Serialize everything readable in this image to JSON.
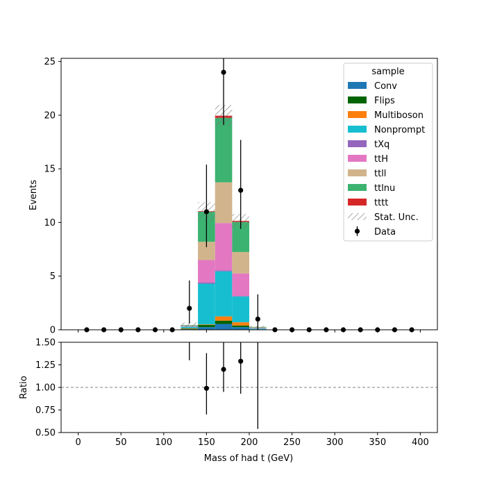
{
  "chart_data": {
    "type": "bar",
    "stacked": true,
    "xlabel": "Mass of had t (GeV)",
    "ylabel": "Events",
    "ratio_ylabel": "Ratio",
    "xlim": [
      -20,
      420
    ],
    "ylim": [
      0,
      25.3
    ],
    "ratio_ylim": [
      0.5,
      1.5
    ],
    "xticks": [
      0,
      50,
      100,
      150,
      200,
      250,
      300,
      350,
      400
    ],
    "yticks": [
      0,
      5,
      10,
      15,
      20,
      25
    ],
    "ratio_yticks": [
      "0.50",
      "0.75",
      "1.00",
      "1.25",
      "1.50"
    ],
    "ratio_yticks_values": [
      0.5,
      0.75,
      1.0,
      1.25,
      1.5
    ],
    "grid": false,
    "legend": {
      "title": "sample",
      "placement": "top-right"
    },
    "bin_edges": [
      120,
      140,
      160,
      180,
      200,
      220
    ],
    "series": [
      {
        "name": "Conv",
        "color": "#1f77b4",
        "values": [
          0.05,
          0.25,
          0.55,
          0.25,
          0.02
        ]
      },
      {
        "name": "Flips",
        "color": "#006400",
        "values": [
          0.05,
          0.2,
          0.3,
          0.15,
          0.0
        ]
      },
      {
        "name": "Multiboson",
        "color": "#ff7f0e",
        "values": [
          0.05,
          0.05,
          0.4,
          0.3,
          0.02
        ]
      },
      {
        "name": "Nonprompt",
        "color": "#17becf",
        "values": [
          0.15,
          3.8,
          4.2,
          2.4,
          0.08
        ]
      },
      {
        "name": "tXq",
        "color": "#9467bd",
        "values": [
          0.0,
          0.1,
          0.1,
          0.05,
          0.0
        ]
      },
      {
        "name": "ttH",
        "color": "#e377c2",
        "values": [
          0.05,
          2.1,
          4.4,
          2.1,
          0.05
        ]
      },
      {
        "name": "ttll",
        "color": "#d2b48c",
        "values": [
          0.05,
          1.7,
          3.8,
          2.0,
          0.05
        ]
      },
      {
        "name": "ttlnu",
        "color": "#3cb371",
        "values": [
          0.05,
          2.8,
          6.0,
          2.8,
          0.05
        ]
      },
      {
        "name": "tttt",
        "color": "#d62728",
        "values": [
          0.0,
          0.05,
          0.2,
          0.1,
          0.0
        ]
      }
    ],
    "stat_unc": {
      "name": "Stat. Unc.",
      "values": [
        0.25,
        0.85,
        1.0,
        0.65,
        0.1
      ]
    },
    "data": {
      "name": "Data",
      "x": [
        10,
        30,
        50,
        70,
        90,
        110,
        130,
        150,
        170,
        190,
        210,
        230,
        250,
        270,
        290,
        310,
        330,
        350,
        370,
        390
      ],
      "y": [
        0,
        0,
        0,
        0,
        0,
        0,
        2,
        11,
        24,
        13,
        1,
        0,
        0,
        0,
        0,
        0,
        0,
        0,
        0,
        0
      ],
      "err_low": [
        0,
        0,
        0,
        0,
        0,
        0,
        1.4,
        3.3,
        4.9,
        3.6,
        1.0,
        0,
        0,
        0,
        0,
        0,
        0,
        0,
        0,
        0
      ],
      "err_high": [
        0,
        0,
        0,
        0,
        0,
        0,
        2.6,
        4.4,
        5.9,
        4.7,
        2.3,
        0,
        0,
        0,
        0,
        0,
        0,
        0,
        0,
        0
      ]
    },
    "ratio": {
      "x": [
        130,
        150,
        170,
        190,
        210
      ],
      "y": [
        null,
        0.99,
        1.2,
        1.29,
        null
      ],
      "err_low": [
        null,
        0.29,
        0.25,
        0.36,
        null
      ],
      "err_high": [
        null,
        0.39,
        0.3,
        0.45,
        null
      ],
      "bars": [
        {
          "x": 130,
          "lo": 1.3,
          "hi": 1.5
        },
        {
          "x": 150,
          "lo": 0.7,
          "hi": 1.38
        },
        {
          "x": 170,
          "lo": 0.95,
          "hi": 1.5
        },
        {
          "x": 190,
          "lo": 0.93,
          "hi": 1.5
        },
        {
          "x": 210,
          "lo": 0.54,
          "hi": 1.5
        }
      ],
      "reference": 1.0
    }
  },
  "legend_entries": [
    "Conv",
    "Flips",
    "Multiboson",
    "Nonprompt",
    "tXq",
    "ttH",
    "ttll",
    "ttlnu",
    "tttt",
    "Stat. Unc.",
    "Data"
  ]
}
